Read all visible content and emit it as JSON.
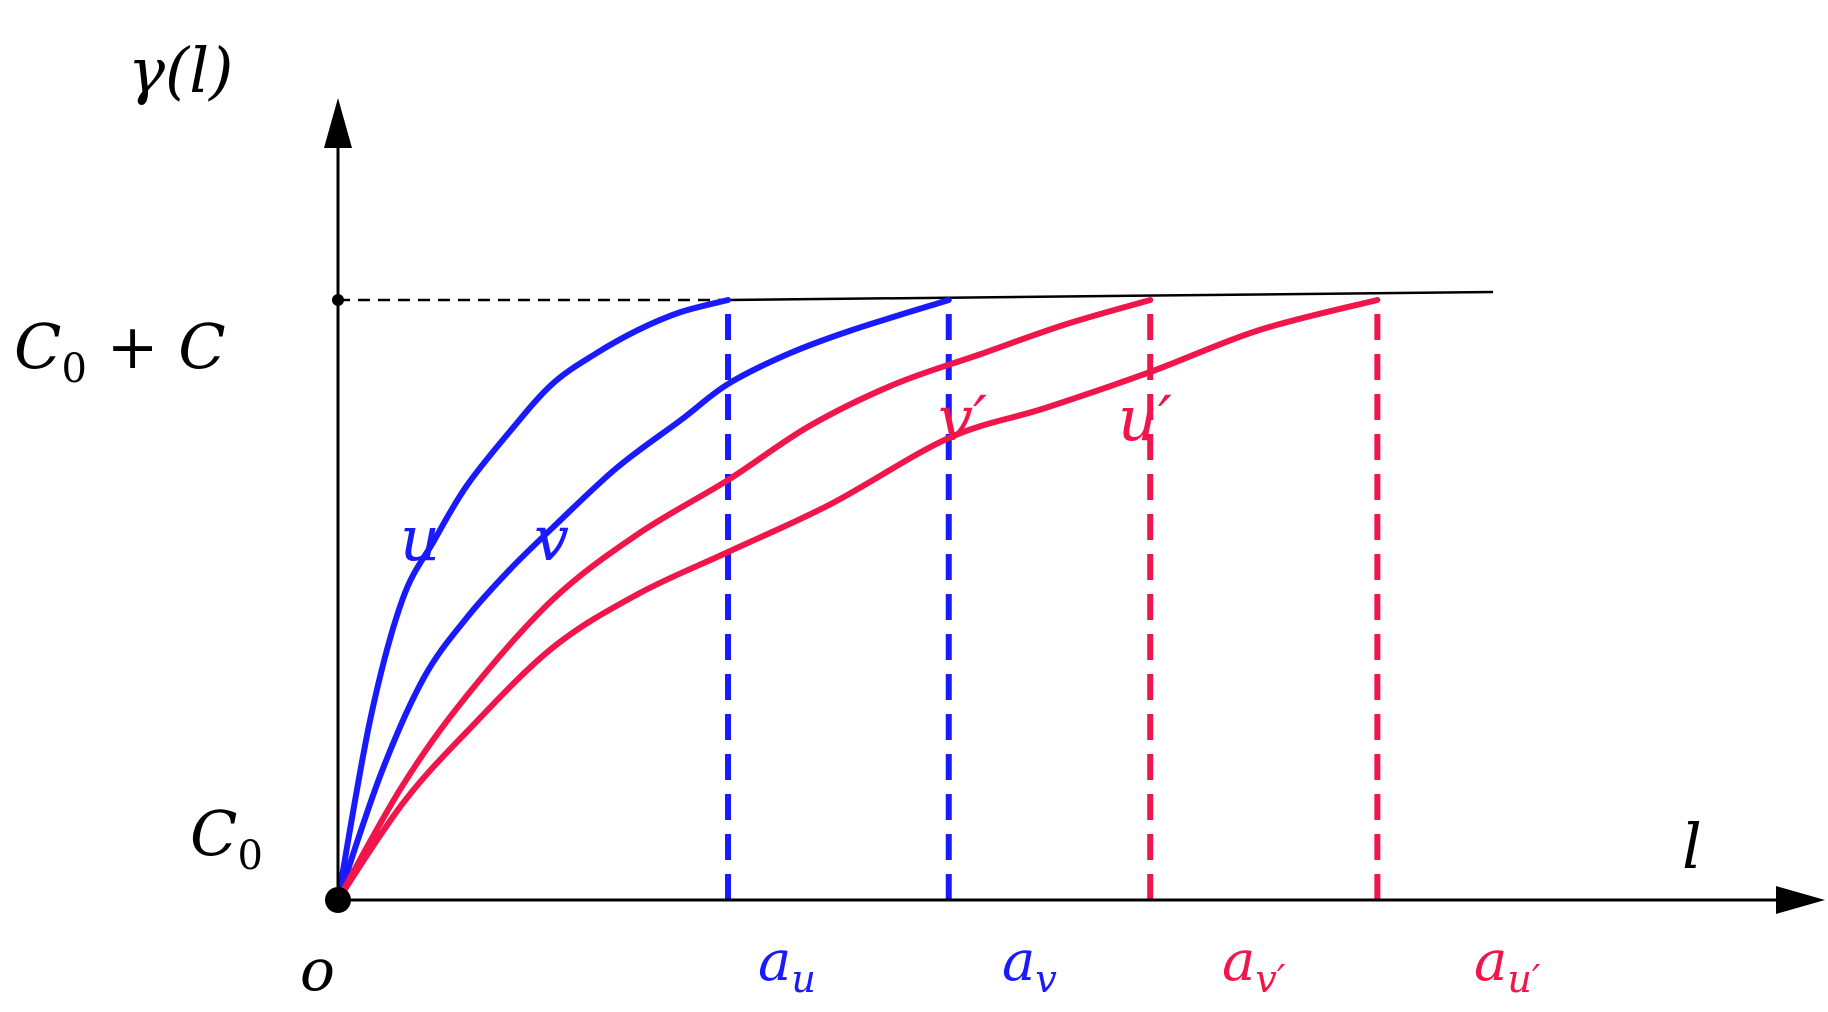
{
  "chart_data": {
    "type": "line",
    "xlabel": "l",
    "ylabel": "γ(l)",
    "origin_label": "o",
    "y_ticks": [
      {
        "label": "C0",
        "base": "C",
        "sub": "0",
        "value": 0
      },
      {
        "label": "C0 + C",
        "base": "C",
        "sub": "0",
        "rest": " + C",
        "value": 1
      }
    ],
    "xlim": [
      0,
      5.5
    ],
    "ylim": [
      0,
      1.5
    ],
    "sill_value": 1,
    "x_markers": [
      {
        "label": "au",
        "base": "a",
        "sub": "u",
        "x": 1.82,
        "color": "#1a1aff"
      },
      {
        "label": "av",
        "base": "a",
        "sub": "v",
        "x": 2.85,
        "color": "#1a1aff"
      },
      {
        "label": "av′",
        "base": "a",
        "sub": "v′",
        "x": 3.79,
        "color": "#f0154a"
      },
      {
        "label": "au′",
        "base": "a",
        "sub": "u′",
        "x": 4.85,
        "color": "#f0154a"
      }
    ],
    "series": [
      {
        "name": "u",
        "color": "#1a1aff",
        "label_at": [
          0.38,
          0.6
        ],
        "x": [
          0,
          0.15,
          0.3,
          0.45,
          0.6,
          0.8,
          1.0,
          1.2,
          1.4,
          1.6,
          1.82
        ],
        "y": [
          0,
          0.3,
          0.5,
          0.6,
          0.69,
          0.78,
          0.86,
          0.91,
          0.95,
          0.98,
          1.0
        ]
      },
      {
        "name": "v",
        "color": "#1a1aff",
        "label_at": [
          0.88,
          0.6
        ],
        "x": [
          0,
          0.2,
          0.4,
          0.6,
          0.8,
          1.0,
          1.3,
          1.6,
          1.82,
          2.1,
          2.4,
          2.85
        ],
        "y": [
          0,
          0.21,
          0.37,
          0.47,
          0.55,
          0.62,
          0.72,
          0.8,
          0.86,
          0.91,
          0.95,
          1.0
        ]
      },
      {
        "name": "v′",
        "color": "#f0154a",
        "label_at": [
          2.72,
          0.79
        ],
        "x": [
          0,
          0.3,
          0.6,
          1.0,
          1.4,
          1.82,
          2.2,
          2.6,
          3.0,
          3.4,
          3.79
        ],
        "y": [
          0,
          0.19,
          0.34,
          0.5,
          0.61,
          0.7,
          0.79,
          0.86,
          0.91,
          0.96,
          1.0
        ]
      },
      {
        "name": "u′",
        "color": "#f0154a",
        "label_at": [
          3.3,
          0.8
        ],
        "x": [
          0,
          0.3,
          0.6,
          1.0,
          1.4,
          1.82,
          2.3,
          2.85,
          3.3,
          3.79,
          4.3,
          4.85
        ],
        "y": [
          0,
          0.16,
          0.28,
          0.42,
          0.51,
          0.58,
          0.66,
          0.77,
          0.82,
          0.88,
          0.95,
          1.0
        ]
      }
    ],
    "grid": false,
    "legend": "none"
  }
}
